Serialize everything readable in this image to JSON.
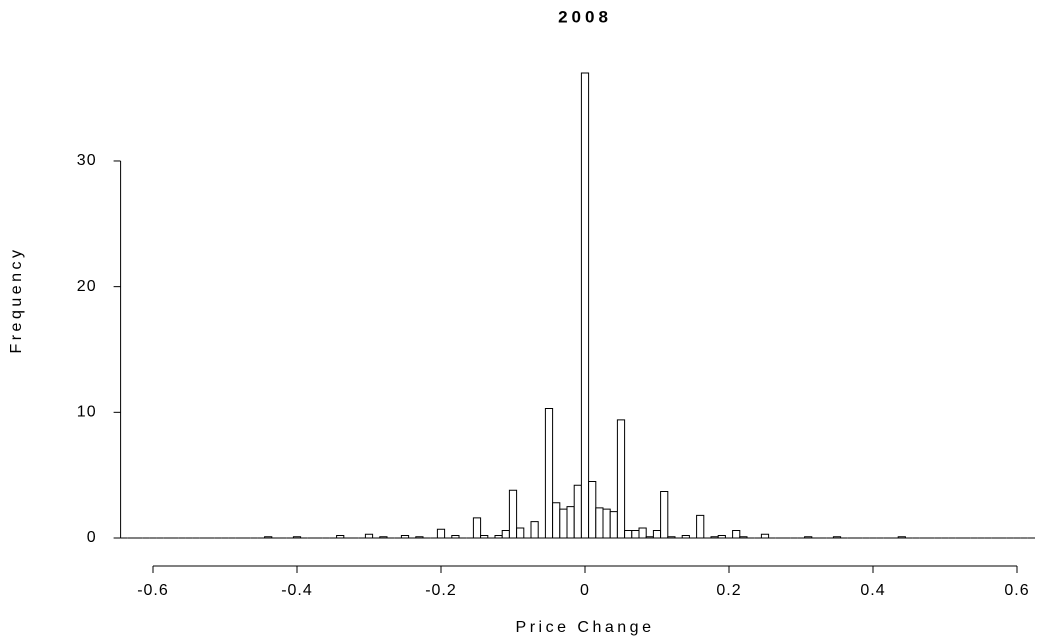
{
  "chart_data": {
    "type": "histogram",
    "title": "2008",
    "xlabel": "Price Change",
    "ylabel": "Frequency",
    "bins": [
      -0.645,
      -0.635,
      -0.625,
      -0.615,
      -0.605,
      -0.595,
      -0.585,
      -0.575,
      -0.565,
      -0.555,
      -0.545,
      -0.535,
      -0.525,
      -0.515,
      -0.505,
      -0.495,
      -0.485,
      -0.475,
      -0.465,
      -0.455,
      -0.445,
      -0.435,
      -0.425,
      -0.415,
      -0.405,
      -0.395,
      -0.385,
      -0.375,
      -0.365,
      -0.355,
      -0.345,
      -0.335,
      -0.325,
      -0.315,
      -0.305,
      -0.295,
      -0.285,
      -0.275,
      -0.265,
      -0.255,
      -0.245,
      -0.235,
      -0.225,
      -0.215,
      -0.205,
      -0.195,
      -0.185,
      -0.175,
      -0.165,
      -0.155,
      -0.145,
      -0.135,
      -0.125,
      -0.115,
      -0.105,
      -0.095,
      -0.085,
      -0.075,
      -0.065,
      -0.055,
      -0.045,
      -0.035,
      -0.025,
      -0.015,
      -0.005,
      0.005,
      0.015,
      0.025,
      0.035,
      0.045,
      0.055,
      0.065,
      0.075,
      0.085,
      0.095,
      0.105,
      0.115,
      0.125,
      0.135,
      0.145,
      0.155,
      0.165,
      0.175,
      0.185,
      0.195,
      0.205,
      0.215,
      0.225,
      0.235,
      0.245,
      0.255,
      0.265,
      0.275,
      0.285,
      0.295,
      0.305,
      0.315,
      0.325,
      0.335,
      0.345,
      0.355,
      0.365,
      0.375,
      0.385,
      0.395,
      0.405,
      0.415,
      0.425,
      0.435,
      0.445,
      0.455,
      0.465,
      0.475,
      0.485,
      0.495,
      0.505,
      0.515,
      0.525,
      0.535,
      0.545,
      0.555,
      0.565,
      0.575,
      0.585,
      0.595,
      0.605,
      0.615,
      0.625
    ],
    "values": [
      0,
      0,
      0,
      0,
      0,
      0,
      0,
      0,
      0,
      0,
      0,
      0,
      0,
      0,
      0,
      0,
      0,
      0,
      0,
      0,
      0.1,
      0,
      0,
      0,
      0.1,
      0,
      0,
      0,
      0,
      0,
      0.2,
      0,
      0,
      0,
      0.3,
      0,
      0.1,
      0,
      0,
      0.2,
      0,
      0.1,
      0,
      0,
      0.7,
      0,
      0.2,
      0,
      0,
      1.6,
      0.2,
      0,
      0.2,
      0.6,
      3.8,
      0.8,
      0,
      1.3,
      0,
      10.3,
      2.8,
      2.3,
      2.5,
      4.2,
      37,
      4.5,
      2.4,
      2.3,
      2.1,
      9.4,
      0.6,
      0.6,
      0.8,
      0.1,
      0.6,
      3.7,
      0.1,
      0,
      0.2,
      0,
      1.8,
      0,
      0.1,
      0.2,
      0,
      0.6,
      0.1,
      0,
      0,
      0.3,
      0,
      0,
      0,
      0,
      0,
      0.1,
      0,
      0,
      0,
      0.1,
      0,
      0,
      0,
      0,
      0,
      0,
      0,
      0,
      0.1,
      0,
      0,
      0,
      0,
      0,
      0,
      0,
      0,
      0,
      0,
      0,
      0,
      0,
      0,
      0,
      0,
      0,
      0
    ],
    "color": "#ffffff",
    "xlim": [
      -0.645,
      0.625
    ],
    "ylim": [
      0,
      37
    ],
    "xticks": [
      -0.6,
      -0.4,
      -0.2,
      0,
      0.2,
      0.4,
      0.6
    ],
    "yticks": [
      0,
      10,
      20,
      30
    ]
  }
}
